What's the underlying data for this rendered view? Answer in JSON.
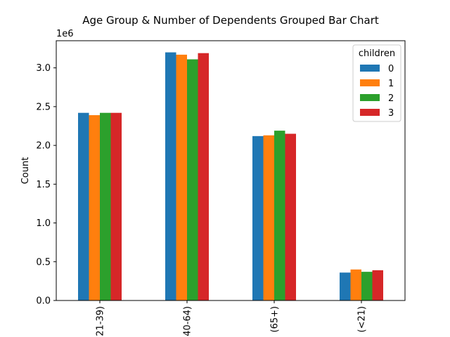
{
  "chart_data": {
    "type": "bar",
    "title": "Age Group & Number of Dependents Grouped Bar Chart",
    "xlabel": "",
    "ylabel": "Count",
    "y_multiplier_label": "1e6",
    "ylim": [
      0,
      3.35
    ],
    "yticks": [
      0.0,
      0.5,
      1.0,
      1.5,
      2.0,
      2.5,
      3.0
    ],
    "ytick_labels": [
      "0.0",
      "0.5",
      "1.0",
      "1.5",
      "2.0",
      "2.5",
      "3.0"
    ],
    "categories": [
      "(21-39)",
      "(40-64)",
      "(65+)",
      "(<21)"
    ],
    "grid": false,
    "legend": {
      "title": "children",
      "placement": "top-right"
    },
    "series": [
      {
        "name": "0",
        "color": "#1f77b4",
        "values": [
          2.42,
          3.2,
          2.12,
          0.36
        ]
      },
      {
        "name": "1",
        "color": "#ff7f0e",
        "values": [
          2.39,
          3.17,
          2.13,
          0.4
        ]
      },
      {
        "name": "2",
        "color": "#2ca02c",
        "values": [
          2.42,
          3.11,
          2.19,
          0.37
        ]
      },
      {
        "name": "3",
        "color": "#d62728",
        "values": [
          2.42,
          3.19,
          2.15,
          0.39
        ]
      }
    ]
  }
}
